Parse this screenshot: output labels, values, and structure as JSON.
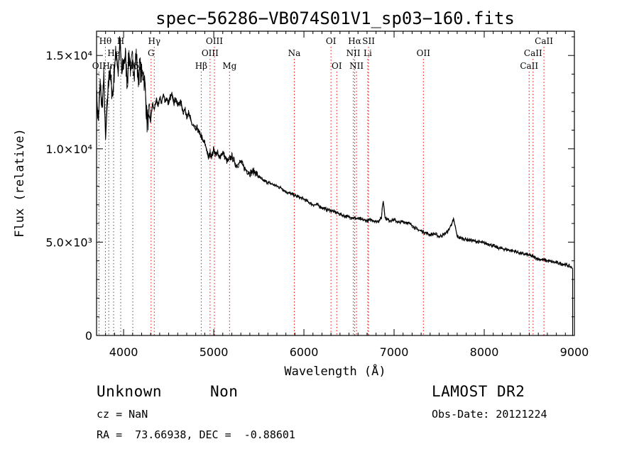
{
  "chart_data": {
    "type": "line",
    "title": "spec−56286−VB074S01V1_sp03−160.fits",
    "xlabel": "Wavelength (Å)",
    "ylabel": "Flux (relative)",
    "xlim": [
      3700,
      9000
    ],
    "ylim": [
      0,
      16300
    ],
    "x_ticks": [
      4000,
      5000,
      6000,
      7000,
      8000,
      9000
    ],
    "x_tick_labels": [
      "4000",
      "5000",
      "6000",
      "7000",
      "8000",
      "9000"
    ],
    "y_ticks": [
      0,
      5000,
      10000,
      15000
    ],
    "y_tick_labels": [
      "0",
      "5.0×10³",
      "1.0×10⁴",
      "1.5×10⁴"
    ],
    "series": [
      {
        "name": "flux",
        "x": [
          3700,
          3720,
          3740,
          3760,
          3780,
          3800,
          3820,
          3840,
          3860,
          3880,
          3900,
          3920,
          3940,
          3960,
          3980,
          4000,
          4020,
          4040,
          4060,
          4080,
          4100,
          4120,
          4140,
          4160,
          4180,
          4200,
          4220,
          4240,
          4260,
          4280,
          4300,
          4320,
          4340,
          4360,
          4380,
          4400,
          4420,
          4440,
          4460,
          4480,
          4500,
          4520,
          4540,
          4560,
          4580,
          4600,
          4620,
          4640,
          4660,
          4680,
          4700,
          4720,
          4740,
          4760,
          4780,
          4800,
          4820,
          4840,
          4860,
          4880,
          4900,
          4920,
          4940,
          4960,
          4980,
          5000,
          5020,
          5040,
          5060,
          5080,
          5100,
          5150,
          5200,
          5250,
          5300,
          5350,
          5400,
          5450,
          5500,
          5550,
          5600,
          5650,
          5700,
          5750,
          5800,
          5850,
          5900,
          5950,
          6000,
          6050,
          6100,
          6150,
          6200,
          6250,
          6300,
          6350,
          6400,
          6450,
          6500,
          6550,
          6600,
          6650,
          6700,
          6750,
          6800,
          6830,
          6860,
          6870,
          6880,
          6890,
          6900,
          6920,
          6950,
          7000,
          7050,
          7100,
          7150,
          7200,
          7250,
          7300,
          7350,
          7400,
          7450,
          7500,
          7550,
          7600,
          7620,
          7640,
          7660,
          7680,
          7700,
          7750,
          7800,
          7850,
          7900,
          7950,
          8000,
          8050,
          8100,
          8150,
          8200,
          8250,
          8300,
          8350,
          8400,
          8450,
          8500,
          8550,
          8600,
          8650,
          8700,
          8750,
          8800,
          8850,
          8900,
          8950,
          8980
        ],
        "y": [
          12800,
          11500,
          13500,
          12200,
          13800,
          10500,
          12500,
          14200,
          13600,
          12800,
          14500,
          15200,
          14100,
          15800,
          14000,
          14600,
          15000,
          13500,
          15100,
          14200,
          14800,
          14300,
          15100,
          13700,
          14400,
          13900,
          14100,
          13200,
          11400,
          11800,
          11500,
          12400,
          12100,
          12600,
          12300,
          12700,
          12500,
          12900,
          12600,
          12700,
          12400,
          12800,
          12900,
          12500,
          12700,
          12300,
          12500,
          12400,
          12000,
          12100,
          11800,
          11900,
          11600,
          11300,
          11200,
          11000,
          11100,
          10800,
          10700,
          10400,
          10300,
          10000,
          9500,
          9800,
          9600,
          10000,
          9700,
          9800,
          9500,
          9700,
          9800,
          9300,
          9600,
          9100,
          9300,
          8900,
          8700,
          8800,
          8500,
          8300,
          8200,
          8100,
          8000,
          7900,
          7700,
          7600,
          7500,
          7400,
          7300,
          7150,
          7000,
          7000,
          6850,
          6750,
          6700,
          6600,
          6500,
          6400,
          6350,
          6300,
          6250,
          6200,
          6150,
          6200,
          6100,
          6150,
          6300,
          6900,
          7200,
          6800,
          6300,
          6250,
          6150,
          6200,
          6050,
          6100,
          6050,
          5900,
          5700,
          5600,
          5500,
          5400,
          5450,
          5300,
          5400,
          5600,
          5800,
          6000,
          6200,
          5800,
          5300,
          5200,
          5150,
          5100,
          5050,
          5000,
          4950,
          4900,
          4800,
          4700,
          4650,
          4600,
          4550,
          4500,
          4400,
          4350,
          4300,
          4200,
          4100,
          4050,
          4000,
          3950,
          3900,
          3850,
          3800,
          3700,
          3600
        ]
      }
    ],
    "line_markers": [
      {
        "name": "OII",
        "wavelength": 3727,
        "row": 3
      },
      {
        "name": "Hθ",
        "wavelength": 3798,
        "row": 1
      },
      {
        "name": "Hη",
        "wavelength": 3835,
        "row": 3
      },
      {
        "name": "He",
        "wavelength": 3889,
        "row": 2
      },
      {
        "name": "H",
        "wavelength": 3968,
        "row": 1
      },
      {
        "name": "Hδ",
        "wavelength": 4102,
        "row": 3
      },
      {
        "name": "Hγ",
        "wavelength": 4340,
        "row": 1
      },
      {
        "name": "G",
        "wavelength": 4305,
        "row": 2
      },
      {
        "name": "Hβ",
        "wavelength": 4861,
        "row": 3
      },
      {
        "name": "OIII",
        "wavelength": 4959,
        "row": 2
      },
      {
        "name": "OIII",
        "wavelength": 5007,
        "row": 1
      },
      {
        "name": "Mg",
        "wavelength": 5175,
        "row": 3
      },
      {
        "name": "Na",
        "wavelength": 5893,
        "row": 2
      },
      {
        "name": "OI",
        "wavelength": 6300,
        "row": 1
      },
      {
        "name": "OI",
        "wavelength": 6364,
        "row": 3
      },
      {
        "name": "NII",
        "wavelength": 6548,
        "row": 2
      },
      {
        "name": "Hα",
        "wavelength": 6563,
        "row": 1
      },
      {
        "name": "NII",
        "wavelength": 6583,
        "row": 3
      },
      {
        "name": "SII",
        "wavelength": 6717,
        "row": 1
      },
      {
        "name": "Li",
        "wavelength": 6708,
        "row": 2
      },
      {
        "name": "OII",
        "wavelength": 7325,
        "row": 2
      },
      {
        "name": "CaII",
        "wavelength": 8498,
        "row": 3
      },
      {
        "name": "CaII",
        "wavelength": 8542,
        "row": 2
      },
      {
        "name": "CaII",
        "wavelength": 8662,
        "row": 1
      }
    ]
  },
  "info": {
    "class": "Unknown",
    "subclass": "Non",
    "cz": "cz = NaN",
    "coords": "RA =  73.66938, DEC =  -0.88601",
    "survey": "LAMOST DR2",
    "obs_date": "Obs-Date: 20121224"
  },
  "colors": {
    "spectrum": "#000000",
    "marker_line": "#ff0000",
    "marker_line_neutral": "#555555"
  }
}
